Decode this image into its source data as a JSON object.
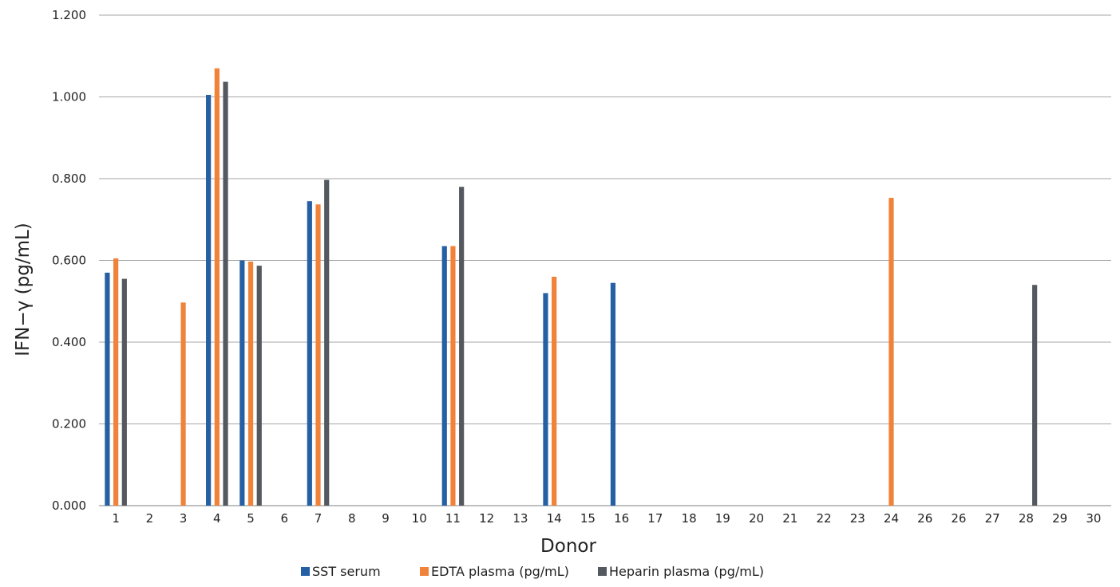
{
  "chart_data": {
    "type": "bar",
    "title": "",
    "xlabel": "Donor",
    "ylabel": "IFN−γ (pg/mL)",
    "ylim": [
      0,
      1.2
    ],
    "yticks": [
      "0.000",
      "0.200",
      "0.400",
      "0.600",
      "0.800",
      "1.000",
      "1.200"
    ],
    "ytick_values": [
      0,
      0.2,
      0.4,
      0.6,
      0.8,
      1.0,
      1.2
    ],
    "grid": true,
    "legend_position": "bottom",
    "categories": [
      "1",
      "2",
      "3",
      "4",
      "5",
      "6",
      "7",
      "8",
      "9",
      "10",
      "11",
      "12",
      "13",
      "14",
      "15",
      "16",
      "17",
      "18",
      "19",
      "20",
      "21",
      "22",
      "23",
      "24",
      "26",
      "26",
      "27",
      "28",
      "29",
      "30"
    ],
    "series": [
      {
        "name": "SST serum",
        "color": "#2660a4",
        "values": [
          0.57,
          null,
          null,
          1.005,
          0.6,
          null,
          0.745,
          null,
          null,
          null,
          0.635,
          null,
          null,
          0.52,
          null,
          0.545,
          null,
          null,
          null,
          null,
          null,
          null,
          null,
          null,
          null,
          null,
          null,
          null,
          null,
          null
        ]
      },
      {
        "name": "EDTA plasma (pg/mL)",
        "color": "#f0823a",
        "values": [
          0.605,
          null,
          0.497,
          1.07,
          0.597,
          null,
          0.737,
          null,
          null,
          null,
          0.635,
          null,
          null,
          0.56,
          null,
          null,
          null,
          null,
          null,
          null,
          null,
          null,
          null,
          0.753,
          null,
          null,
          null,
          null,
          null,
          null
        ]
      },
      {
        "name": "Heparin plasma (pg/mL)",
        "color": "#54585f",
        "values": [
          0.555,
          null,
          null,
          1.037,
          0.587,
          null,
          0.797,
          null,
          null,
          null,
          0.78,
          null,
          null,
          null,
          null,
          null,
          null,
          null,
          null,
          null,
          null,
          null,
          null,
          null,
          null,
          null,
          null,
          0.54,
          null,
          null
        ]
      }
    ]
  }
}
